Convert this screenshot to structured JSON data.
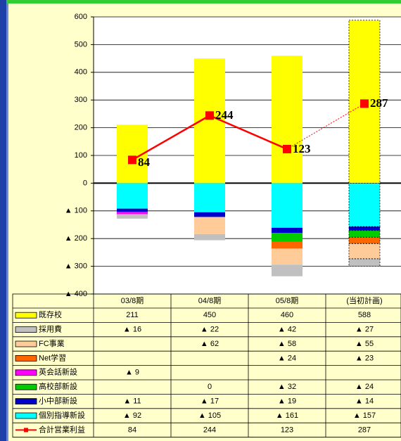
{
  "chart_data": {
    "type": "bar",
    "categories": [
      "03/8期",
      "04/8期",
      "05/8期",
      "(当初計画)"
    ],
    "ylim": [
      -400,
      600
    ],
    "yticks": [
      {
        "value": -400,
        "label": "▲ 400"
      },
      {
        "value": -300,
        "label": "▲ 300"
      },
      {
        "value": -200,
        "label": "▲ 200"
      },
      {
        "value": -100,
        "label": "▲ 100"
      },
      0,
      100,
      200,
      300,
      400,
      500,
      600
    ],
    "grid": true,
    "series": [
      {
        "name": "既存校",
        "color": "#ffff00",
        "values": [
          211,
          450,
          460,
          588
        ]
      },
      {
        "name": "採用費",
        "color": "#c0c0c0",
        "values": [
          -16,
          -22,
          -42,
          -27
        ],
        "value_labels": [
          "▲ 16",
          "▲ 22",
          "▲ 42",
          "▲ 27"
        ]
      },
      {
        "name": "FC事業",
        "color": "#ffcc99",
        "values": [
          null,
          -62,
          -58,
          -55
        ],
        "value_labels": [
          null,
          "▲ 62",
          "▲ 58",
          "▲ 55"
        ]
      },
      {
        "name": "Net学習",
        "color": "#ff6600",
        "values": [
          null,
          null,
          -24,
          -23
        ],
        "value_labels": [
          null,
          null,
          "▲ 24",
          "▲ 23"
        ]
      },
      {
        "name": "英会話新設",
        "color": "#ff00ff",
        "values": [
          -9,
          null,
          null,
          null
        ],
        "value_labels": [
          "▲ 9",
          null,
          null,
          null
        ]
      },
      {
        "name": "高校部新設",
        "color": "#00cc00",
        "values": [
          null,
          0,
          -32,
          -24
        ],
        "value_labels": [
          null,
          "0",
          "▲ 32",
          "▲ 24"
        ]
      },
      {
        "name": "小中部新設",
        "color": "#0000cc",
        "values": [
          -11,
          -17,
          -19,
          -14
        ],
        "value_labels": [
          "▲ 11",
          "▲ 17",
          "▲ 19",
          "▲ 14"
        ]
      },
      {
        "name": "個別指導新設",
        "color": "#00ffff",
        "values": [
          -92,
          -105,
          -161,
          -157
        ],
        "value_labels": [
          "▲ 92",
          "▲ 105",
          "▲ 161",
          "▲ 157"
        ]
      },
      {
        "name": "合計営業利益",
        "color": "#ff0000",
        "type": "line",
        "values": [
          84,
          244,
          123,
          287
        ]
      }
    ]
  }
}
